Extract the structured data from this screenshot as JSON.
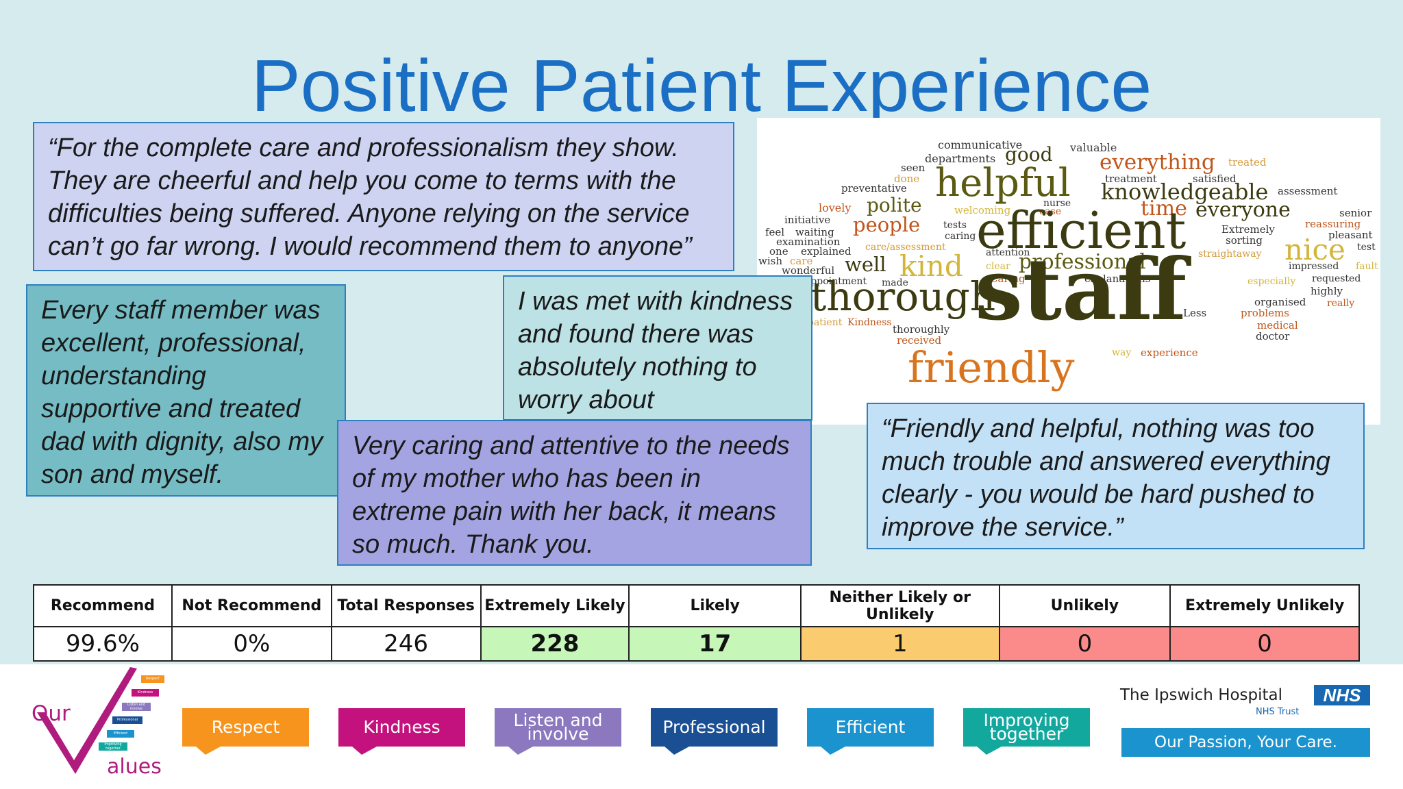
{
  "title": "Positive Patient Experience",
  "quotes": {
    "q1": "“For the complete care and professionalism they show. They are cheerful and help you come to terms with the difficulties being suffered. Anyone relying on the service can’t go far wrong. I would recommend them to anyone”",
    "q2": "Every staff member was excellent, professional, understanding supportive and treated dad with dignity, also my son and myself.",
    "q3": "I was met with kindness and found there was absolutely nothing to worry about",
    "q4": "Very caring and attentive to the needs of my mother who has been in extreme pain with her back, it means so much. Thank you.",
    "q5": "“Friendly and helpful, nothing was too much trouble and answered everything clearly - you would be hard pushed to improve the service.”"
  },
  "wordcloud": {
    "words": [
      "communicative",
      "good",
      "valuable",
      "departments",
      "everything",
      "treated",
      "seen",
      "done",
      "helpful",
      "treatment",
      "satisfied",
      "preventative",
      "knowledgeable",
      "assessment",
      "lovely",
      "polite",
      "nurse",
      "welcoming",
      "ease",
      "time",
      "everyone",
      "senior",
      "initiative",
      "people",
      "tests",
      "efficient",
      "Extremely",
      "reassuring",
      "feel",
      "waiting",
      "caring",
      "sorting",
      "pleasant",
      "examination",
      "care/assessment",
      "nice",
      "test",
      "one",
      "explained",
      "attention",
      "straightaway",
      "wish",
      "care",
      "kind",
      "impressed",
      "fault",
      "wonderful",
      "well",
      "clear",
      "professional",
      "requested",
      "appointment",
      "made",
      "Caring",
      "explanations",
      "especially",
      "highly",
      "thorough",
      "staff",
      "organised",
      "really",
      "patient",
      "Kindness",
      "Less",
      "problems",
      "thoroughly",
      "medical",
      "received",
      "doctor",
      "way",
      "experience",
      "friendly"
    ]
  },
  "table": {
    "headers": [
      "Recommend",
      "Not Recommend",
      "Total Responses",
      "Extremely Likely",
      "Likely",
      "Neither Likely or Unlikely",
      "Unlikely",
      "Extremely Unlikely"
    ],
    "values": [
      "99.6%",
      "0%",
      "246",
      "228",
      "17",
      "1",
      "0",
      "0"
    ],
    "colors": [
      "#ffffff",
      "#ffffff",
      "#ffffff",
      "#c6f7b8",
      "#c6f7b8",
      "#fbcb70",
      "#fb8a8a",
      "#fb8a8a"
    ]
  },
  "footer": {
    "logo_top": "Our",
    "logo_bottom": "alues",
    "logo_small": [
      "Respect",
      "Kindness",
      "Listen and involve",
      "Professional",
      "Efficient",
      "Improving together"
    ],
    "values": [
      {
        "line1": "Respect",
        "line2": "",
        "color": "#f7941d"
      },
      {
        "line1": "Kindness",
        "line2": "",
        "color": "#c3127e"
      },
      {
        "line1": "Listen and",
        "line2": "involve",
        "color": "#8b78bf"
      },
      {
        "line1": "Professional",
        "line2": "",
        "color": "#1a4f94"
      },
      {
        "line1": "Efficient",
        "line2": "",
        "color": "#1a93cf"
      },
      {
        "line1": "Improving",
        "line2": "together",
        "color": "#13a89e"
      }
    ],
    "org_name": "The Ipswich Hospital",
    "nhs": "NHS",
    "trust": "NHS Trust",
    "tagline": "Our Passion, Your Care."
  }
}
